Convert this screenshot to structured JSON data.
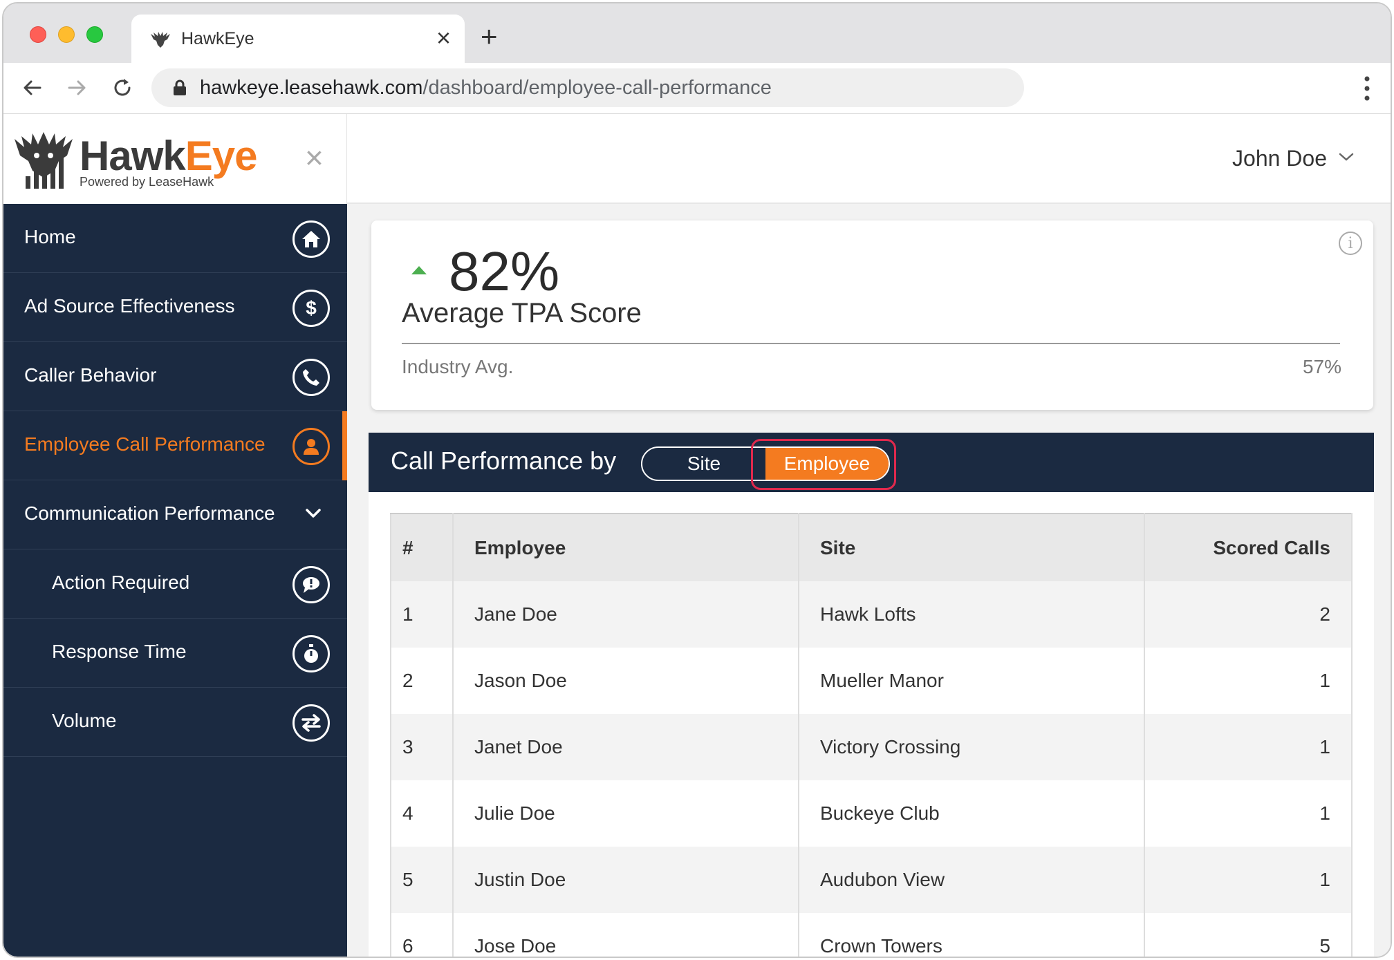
{
  "browser": {
    "tab_title": "HawkEye",
    "tab_close": "×",
    "new_tab": "+",
    "url_host": "hawkeye.leasehawk.com",
    "url_path": "/dashboard/employee-call-performance"
  },
  "brand": {
    "name_part1": "Hawk",
    "name_part2": "Eye",
    "tagline": "Powered by LeaseHawk",
    "close": "×",
    "primary_color": "#1b2a41",
    "accent_color": "#f47b20"
  },
  "header": {
    "user_name": "John Doe"
  },
  "sidebar": {
    "items": [
      {
        "label": "Home",
        "icon": "home-icon",
        "active": false
      },
      {
        "label": "Ad Source Effectiveness",
        "icon": "dollar-icon",
        "active": false
      },
      {
        "label": "Caller Behavior",
        "icon": "phone-icon",
        "active": false
      },
      {
        "label": "Employee Call Performance",
        "icon": "person-icon",
        "active": true
      },
      {
        "label": "Communication Performance",
        "icon": "chevron-down-icon",
        "active": false
      },
      {
        "label": "Action Required",
        "icon": "alert-bubble-icon",
        "active": false
      },
      {
        "label": "Response Time",
        "icon": "stopwatch-icon",
        "active": false
      },
      {
        "label": "Volume",
        "icon": "swap-arrows-icon",
        "active": false
      }
    ]
  },
  "score_card": {
    "value": "82%",
    "label": "Average TPA Score",
    "trend": "up",
    "industry_label": "Industry Avg.",
    "industry_value": "57%"
  },
  "performance": {
    "title": "Call Performance by",
    "toggle": {
      "site": "Site",
      "employee": "Employee",
      "selected": "Employee"
    },
    "columns": [
      "#",
      "Employee",
      "Site",
      "Scored Calls"
    ],
    "rows": [
      {
        "num": "1",
        "employee": "Jane Doe",
        "site": "Hawk Lofts",
        "scored": "2"
      },
      {
        "num": "2",
        "employee": "Jason Doe",
        "site": "Mueller Manor",
        "scored": "1"
      },
      {
        "num": "3",
        "employee": "Janet Doe",
        "site": "Victory Crossing",
        "scored": "1"
      },
      {
        "num": "4",
        "employee": "Julie Doe",
        "site": "Buckeye Club",
        "scored": "1"
      },
      {
        "num": "5",
        "employee": "Justin Doe",
        "site": "Audubon View",
        "scored": "1"
      },
      {
        "num": "6",
        "employee": "Jose Doe",
        "site": "Crown Towers",
        "scored": "5"
      }
    ]
  }
}
